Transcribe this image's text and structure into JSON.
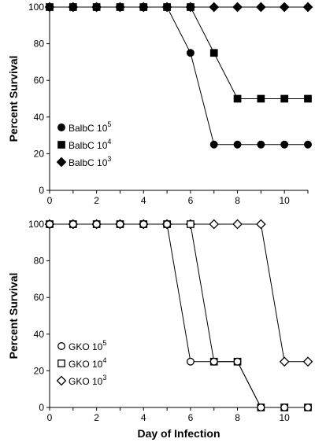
{
  "chart_data": [
    {
      "type": "line",
      "panel": "top",
      "ylabel": "Percent Survival",
      "xlabel": "",
      "xlim": [
        0,
        11
      ],
      "ylim": [
        0,
        100
      ],
      "xticks": [
        0,
        2,
        4,
        6,
        8,
        10
      ],
      "yticks": [
        0,
        20,
        40,
        60,
        80,
        100
      ],
      "legend_position": "bottom-left",
      "series": [
        {
          "name": "BalbC 10",
          "exponent": "5",
          "marker": "filled-circle",
          "x": [
            0,
            1,
            2,
            3,
            4,
            5,
            6,
            7,
            8,
            9,
            10,
            11
          ],
          "y": [
            100,
            100,
            100,
            100,
            100,
            100,
            75,
            25,
            25,
            25,
            25,
            25
          ]
        },
        {
          "name": "BalbC 10",
          "exponent": "4",
          "marker": "filled-square",
          "x": [
            0,
            1,
            2,
            3,
            4,
            5,
            6,
            7,
            8,
            9,
            10,
            11
          ],
          "y": [
            100,
            100,
            100,
            100,
            100,
            100,
            100,
            75,
            50,
            50,
            50,
            50
          ]
        },
        {
          "name": "BalbC 10",
          "exponent": "3",
          "marker": "filled-diamond",
          "x": [
            0,
            1,
            2,
            3,
            4,
            5,
            6,
            7,
            8,
            9,
            10,
            11
          ],
          "y": [
            100,
            100,
            100,
            100,
            100,
            100,
            100,
            100,
            100,
            100,
            100,
            100
          ]
        }
      ]
    },
    {
      "type": "line",
      "panel": "bottom",
      "ylabel": "Percent Survival",
      "xlabel": "Day of Infection",
      "xlim": [
        0,
        11
      ],
      "ylim": [
        0,
        100
      ],
      "xticks": [
        0,
        2,
        4,
        6,
        8,
        10
      ],
      "yticks": [
        0,
        20,
        40,
        60,
        80,
        100
      ],
      "legend_position": "bottom-left",
      "series": [
        {
          "name": "GKO 10",
          "exponent": "5",
          "marker": "open-circle",
          "x": [
            0,
            1,
            2,
            3,
            4,
            5,
            6,
            7,
            8,
            9,
            10,
            11
          ],
          "y": [
            100,
            100,
            100,
            100,
            100,
            100,
            25,
            25,
            25,
            0,
            0,
            0
          ]
        },
        {
          "name": "GKO 10",
          "exponent": "4",
          "marker": "open-square",
          "x": [
            0,
            1,
            2,
            3,
            4,
            5,
            6,
            7,
            8,
            9,
            10,
            11
          ],
          "y": [
            100,
            100,
            100,
            100,
            100,
            100,
            100,
            25,
            25,
            0,
            0,
            0
          ]
        },
        {
          "name": "GKO 10",
          "exponent": "3",
          "marker": "open-diamond",
          "x": [
            0,
            1,
            2,
            3,
            4,
            5,
            6,
            7,
            8,
            9,
            10,
            11
          ],
          "y": [
            100,
            100,
            100,
            100,
            100,
            100,
            100,
            100,
            100,
            100,
            25,
            25
          ]
        }
      ]
    }
  ]
}
